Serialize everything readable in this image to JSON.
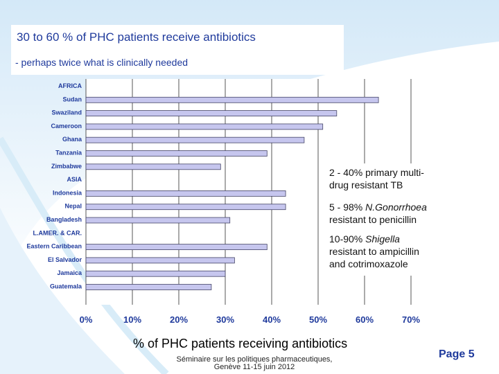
{
  "header": {
    "title": "30 to 60 % of PHC patients receive antibiotics",
    "subtitle": "- perhaps twice what is clinically needed"
  },
  "annotations": {
    "line1": "2 - 40% primary multi-",
    "line2": "drug resistant TB",
    "line3_prefix": "5 - 98% ",
    "line3_italic": "N.Gonorrhoea",
    "line4": "resistant to penicillin",
    "line5_prefix": "10-90% ",
    "line5_italic": "Shigella",
    "line6": "resistant to ampicillin",
    "line7": "and cotrimoxazole"
  },
  "footer": {
    "line1": "Séminaire sur les politiques pharmaceutiques,",
    "line2": "Genève 11-15 juin 2012",
    "page": "Page 5"
  },
  "colors": {
    "title": "#1f3a9c",
    "bar_fill": "#c6c6ee",
    "bar_stroke": "#444466",
    "axis_text": "#1f3a9c"
  },
  "chart_data": {
    "type": "bar",
    "orientation": "horizontal",
    "categories": [
      "AFRICA",
      "Sudan",
      "Swaziland",
      "Cameroon",
      "Ghana",
      "Tanzania",
      "Zimbabwe",
      "ASIA",
      "Indonesia",
      "Nepal",
      "Bangladesh",
      "L.AMER. & CAR.",
      "Eastern Caribbean",
      "El Salvador",
      "Jamaica",
      "Guatemala"
    ],
    "values": [
      null,
      63,
      54,
      51,
      47,
      39,
      29,
      null,
      43,
      43,
      31,
      null,
      39,
      32,
      30,
      27
    ],
    "xlabel": "% of PHC patients receiving antibiotics",
    "xlim": [
      0,
      70
    ],
    "xticks": [
      "0%",
      "10%",
      "20%",
      "30%",
      "40%",
      "50%",
      "60%",
      "70%"
    ],
    "grid": true
  }
}
